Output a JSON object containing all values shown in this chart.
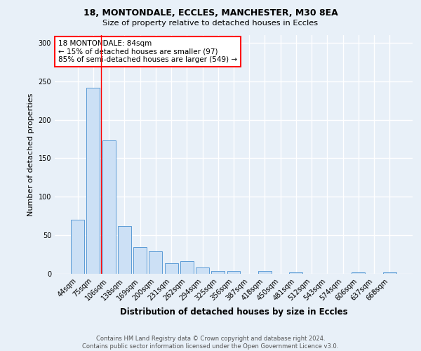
{
  "title1": "18, MONTONDALE, ECCLES, MANCHESTER, M30 8EA",
  "title2": "Size of property relative to detached houses in Eccles",
  "xlabel": "Distribution of detached houses by size in Eccles",
  "ylabel": "Number of detached properties",
  "categories": [
    "44sqm",
    "75sqm",
    "106sqm",
    "138sqm",
    "169sqm",
    "200sqm",
    "231sqm",
    "262sqm",
    "294sqm",
    "325sqm",
    "356sqm",
    "387sqm",
    "418sqm",
    "450sqm",
    "481sqm",
    "512sqm",
    "543sqm",
    "574sqm",
    "606sqm",
    "637sqm",
    "668sqm"
  ],
  "values": [
    70,
    242,
    173,
    62,
    35,
    29,
    14,
    16,
    8,
    4,
    4,
    0,
    4,
    0,
    2,
    0,
    0,
    0,
    2,
    0,
    2
  ],
  "bar_color": "#cce0f5",
  "bar_edge_color": "#5b9bd5",
  "red_line_x": 1.5,
  "annotation_text": "18 MONTONDALE: 84sqm\n← 15% of detached houses are smaller (97)\n85% of semi-detached houses are larger (549) →",
  "annotation_box_color": "white",
  "annotation_box_edge": "red",
  "footnote": "Contains HM Land Registry data © Crown copyright and database right 2024.\nContains public sector information licensed under the Open Government Licence v3.0.",
  "ylim": [
    0,
    310
  ],
  "yticks": [
    0,
    50,
    100,
    150,
    200,
    250,
    300
  ],
  "background_color": "#e8f0f8",
  "grid_color": "white"
}
